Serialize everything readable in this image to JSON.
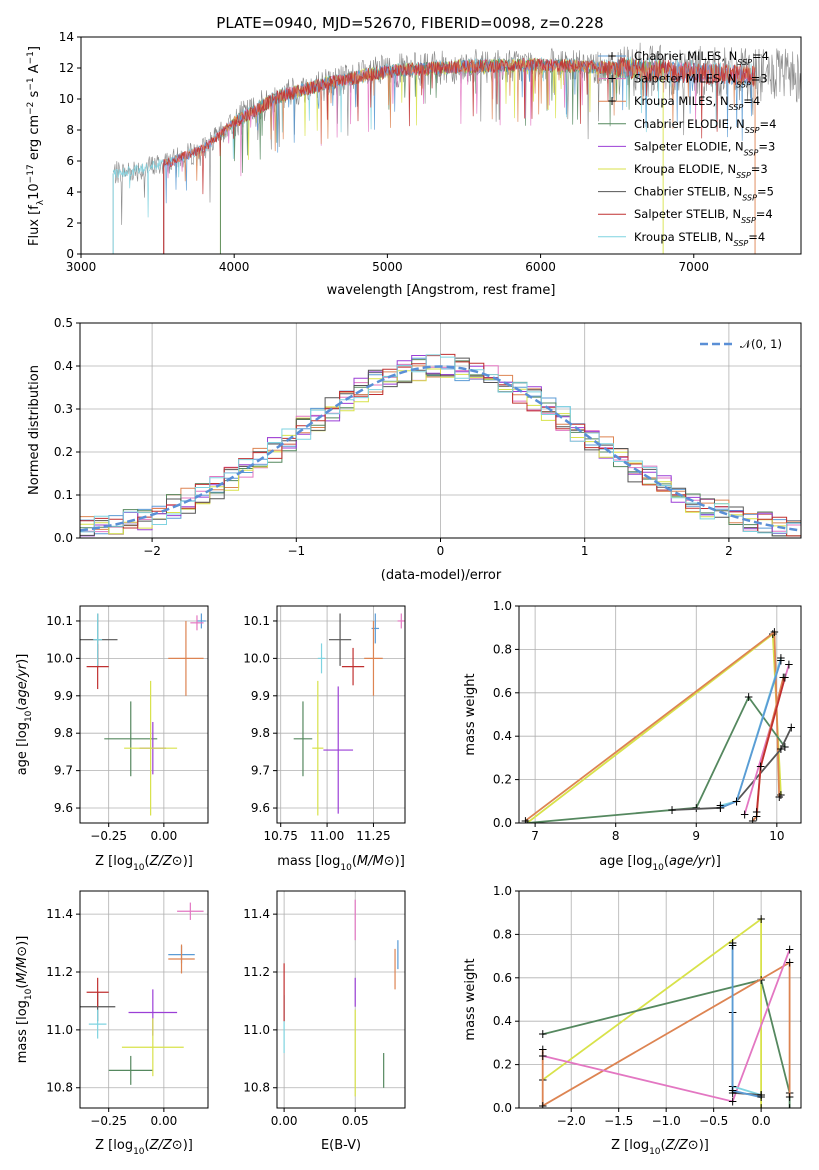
{
  "colors": {
    "Chabrier MILES": "#5b9bd5",
    "Salpeter MILES": "#e377c2",
    "Kroupa MILES": "#dd8452",
    "Chabrier ELODIE": "#55885f",
    "Salpeter ELODIE": "#9b3fd6",
    "Kroupa ELODIE": "#d8e24a",
    "Chabrier STELIB": "#555555",
    "Salpeter STELIB": "#c03030",
    "Kroupa STELIB": "#7fd3e0",
    "normal": "#5a8fd6"
  },
  "chart_data": [
    {
      "id": "spectrum",
      "type": "line",
      "title": "PLATE=0940, MJD=52670, FIBERID=0098, z=0.228",
      "xlabel": "wavelength [Angstrom, rest frame]",
      "ylabel": "Flux [f_λ10^-17 erg cm^-2 s^-1 A^-1]",
      "xlim": [
        3000,
        7700
      ],
      "ylim": [
        0,
        14
      ],
      "xticks": [
        3000,
        4000,
        5000,
        6000,
        7000
      ],
      "yticks": [
        0,
        2,
        4,
        6,
        8,
        10,
        12,
        14
      ],
      "legend_position": "upper-right",
      "legend": [
        {
          "name": "Chabrier MILES",
          "nssp": 4,
          "marker": true
        },
        {
          "name": "Salpeter MILES",
          "nssp": 3,
          "marker": true
        },
        {
          "name": "Kroupa MILES",
          "nssp": 4,
          "marker": true
        },
        {
          "name": "Chabrier ELODIE",
          "nssp": 4
        },
        {
          "name": "Salpeter ELODIE",
          "nssp": 3
        },
        {
          "name": "Kroupa ELODIE",
          "nssp": 3
        },
        {
          "name": "Chabrier STELIB",
          "nssp": 5
        },
        {
          "name": "Salpeter STELIB",
          "nssp": 4
        },
        {
          "name": "Kroupa STELIB",
          "nssp": 4
        }
      ],
      "data_range": {
        "observed_start": 3210,
        "miles_start": 3540,
        "elodie_start": 3910,
        "elodie_end": 6800,
        "stelib_end": 7400
      },
      "continuum": {
        "x": [
          3210,
          3400,
          3600,
          3800,
          4000,
          4300,
          4600,
          5000,
          5500,
          6000,
          6500,
          7000,
          7400
        ],
        "y": [
          5.2,
          5.5,
          6.0,
          6.8,
          8.5,
          10.2,
          11.0,
          11.8,
          12.1,
          12.2,
          12.0,
          11.7,
          11.5
        ]
      }
    },
    {
      "id": "residuals",
      "type": "histogram",
      "xlabel": "(data-model)/error",
      "ylabel": "Normed distribution",
      "xlim": [
        -2.5,
        2.5
      ],
      "ylim": [
        0,
        0.5
      ],
      "xticks": [
        -2,
        -1,
        0,
        1,
        2
      ],
      "yticks": [
        0.0,
        0.1,
        0.2,
        0.3,
        0.4,
        0.5
      ],
      "grid": true,
      "legend_position": "upper-right",
      "normal_label": "𝒩(0, 1)",
      "bin_width": 0.1
    },
    {
      "id": "age-vs-Z",
      "type": "scatter",
      "xlabel": "Z [log10(Z/Z⊙)]",
      "ylabel": "age  [log10(age/yr)]",
      "xlim": [
        -0.38,
        0.2
      ],
      "ylim": [
        9.56,
        10.14
      ],
      "xticks": [
        -0.25,
        0.0
      ],
      "yticks": [
        9.6,
        9.7,
        9.8,
        9.9,
        10.0,
        10.1
      ],
      "grid": true,
      "points": [
        {
          "series": "Chabrier MILES",
          "x": 0.17,
          "y": 10.1,
          "xerr": 0.02,
          "yerr": 0.02
        },
        {
          "series": "Salpeter MILES",
          "x": 0.15,
          "y": 10.095,
          "xerr": 0.03,
          "yerr": 0.02
        },
        {
          "series": "Kroupa MILES",
          "x": 0.1,
          "y": 10.0,
          "xerr": 0.08,
          "yerr": 0.1
        },
        {
          "series": "Chabrier ELODIE",
          "x": -0.15,
          "y": 9.785,
          "xerr": 0.12,
          "yerr": 0.1
        },
        {
          "series": "Salpeter ELODIE",
          "x": -0.05,
          "y": 9.76,
          "xerr": 0.06,
          "yerr": 0.07
        },
        {
          "series": "Kroupa ELODIE",
          "x": -0.06,
          "y": 9.76,
          "xerr": 0.12,
          "yerr": 0.18
        },
        {
          "series": "Chabrier STELIB",
          "x": -0.3,
          "y": 10.05,
          "xerr": 0.09,
          "yerr": 0.07
        },
        {
          "series": "Salpeter STELIB",
          "x": -0.3,
          "y": 9.978,
          "xerr": 0.05,
          "yerr": 0.06
        },
        {
          "series": "Kroupa STELIB",
          "x": -0.3,
          "y": 10.05,
          "xerr": 0.02,
          "yerr": 0.07
        }
      ]
    },
    {
      "id": "age-vs-mass",
      "type": "scatter",
      "xlabel": "mass [log10(M/M⊙)]",
      "xlim": [
        10.73,
        11.42
      ],
      "ylim": [
        9.56,
        10.14
      ],
      "xticks": [
        10.75,
        11.0,
        11.25
      ],
      "yticks": [
        9.6,
        9.7,
        9.8,
        9.9,
        10.0,
        10.1
      ],
      "grid": true,
      "points": [
        {
          "series": "Chabrier MILES",
          "x": 11.26,
          "y": 10.08,
          "xerr": 0.02,
          "yerr": 0.04
        },
        {
          "series": "Salpeter MILES",
          "x": 11.4,
          "y": 10.1,
          "xerr": 0.02,
          "yerr": 0.02
        },
        {
          "series": "Kroupa MILES",
          "x": 11.25,
          "y": 10.0,
          "xerr": 0.05,
          "yerr": 0.1
        },
        {
          "series": "Chabrier ELODIE",
          "x": 10.87,
          "y": 9.785,
          "xerr": 0.05,
          "yerr": 0.1
        },
        {
          "series": "Salpeter ELODIE",
          "x": 11.06,
          "y": 9.755,
          "xerr": 0.08,
          "yerr": 0.17
        },
        {
          "series": "Kroupa ELODIE",
          "x": 10.95,
          "y": 9.76,
          "xerr": 0.03,
          "yerr": 0.18
        },
        {
          "series": "Chabrier STELIB",
          "x": 11.07,
          "y": 10.05,
          "xerr": 0.06,
          "yerr": 0.07
        },
        {
          "series": "Salpeter STELIB",
          "x": 11.14,
          "y": 9.978,
          "xerr": 0.06,
          "yerr": 0.05
        },
        {
          "series": "Kroupa STELIB",
          "x": 10.97,
          "y": 10.0,
          "xerr": 0.02,
          "yerr": 0.04
        }
      ]
    },
    {
      "id": "weight-vs-age",
      "type": "line",
      "xlabel": "age  [log10(age/yr)]",
      "ylabel": "mass weight",
      "xlim": [
        6.8,
        10.3
      ],
      "ylim": [
        0,
        1
      ],
      "xticks": [
        7,
        8,
        9,
        10
      ],
      "yticks": [
        0.0,
        0.2,
        0.4,
        0.6,
        0.8,
        1.0
      ],
      "grid": true,
      "series": [
        {
          "name": "Kroupa ELODIE",
          "x": [
            6.9,
            9.95,
            10.05
          ],
          "y": [
            0.0,
            0.87,
            0.13
          ]
        },
        {
          "name": "Kroupa MILES",
          "x": [
            6.88,
            9.97,
            10.03
          ],
          "y": [
            0.01,
            0.88,
            0.12
          ]
        },
        {
          "name": "Chabrier ELODIE",
          "x": [
            6.9,
            9.0,
            9.65,
            10.1
          ],
          "y": [
            0.0,
            0.07,
            0.58,
            0.35
          ]
        },
        {
          "name": "Chabrier STELIB",
          "x": [
            8.7,
            9.3,
            9.5,
            10.05,
            10.18
          ],
          "y": [
            0.06,
            0.07,
            0.1,
            0.34,
            0.44
          ]
        },
        {
          "name": "Kroupa STELIB",
          "x": [
            9.3,
            9.5,
            10.05
          ],
          "y": [
            0.08,
            0.1,
            0.76
          ]
        },
        {
          "name": "Chabrier MILES",
          "x": [
            9.3,
            9.5,
            10.05
          ],
          "y": [
            0.07,
            0.1,
            0.75
          ]
        },
        {
          "name": "Salpeter MILES",
          "x": [
            9.6,
            10.15
          ],
          "y": [
            0.04,
            0.73
          ]
        },
        {
          "name": "Kroupa MILES",
          "x": [
            9.7,
            9.75,
            9.8,
            10.08
          ],
          "y": [
            0.01,
            0.03,
            0.26,
            0.67
          ]
        },
        {
          "name": "Salpeter STELIB",
          "x": [
            9.75,
            9.8,
            10.1
          ],
          "y": [
            0.05,
            0.26,
            0.67
          ]
        }
      ]
    },
    {
      "id": "mass-vs-Z",
      "type": "scatter",
      "xlabel": "Z [log10(Z/Z⊙)]",
      "ylabel": "mass [log10(M/M⊙)]",
      "xlim": [
        -0.38,
        0.2
      ],
      "ylim": [
        10.73,
        11.48
      ],
      "xticks": [
        -0.25,
        0.0
      ],
      "yticks": [
        10.8,
        11.0,
        11.2,
        11.4
      ],
      "grid": true,
      "points": [
        {
          "series": "Chabrier MILES",
          "x": 0.08,
          "y": 11.26,
          "xerr": 0.06,
          "yerr": 0.03
        },
        {
          "series": "Salpeter MILES",
          "x": 0.12,
          "y": 11.41,
          "xerr": 0.06,
          "yerr": 0.03
        },
        {
          "series": "Kroupa MILES",
          "x": 0.08,
          "y": 11.245,
          "xerr": 0.06,
          "yerr": 0.05
        },
        {
          "series": "Chabrier ELODIE",
          "x": -0.15,
          "y": 10.86,
          "xerr": 0.1,
          "yerr": 0.05
        },
        {
          "series": "Salpeter ELODIE",
          "x": -0.05,
          "y": 11.06,
          "xerr": 0.11,
          "yerr": 0.08
        },
        {
          "series": "Kroupa ELODIE",
          "x": -0.05,
          "y": 10.94,
          "xerr": 0.14,
          "yerr": 0.1
        },
        {
          "series": "Chabrier STELIB",
          "x": -0.3,
          "y": 11.08,
          "xerr": 0.08,
          "yerr": 0.05
        },
        {
          "series": "Salpeter STELIB",
          "x": -0.3,
          "y": 11.13,
          "xerr": 0.05,
          "yerr": 0.05
        },
        {
          "series": "Kroupa STELIB",
          "x": -0.3,
          "y": 11.02,
          "xerr": 0.04,
          "yerr": 0.05
        }
      ]
    },
    {
      "id": "mass-vs-EBV",
      "type": "scatter",
      "xlabel": "E(B-V)",
      "xlim": [
        -0.005,
        0.085
      ],
      "ylim": [
        10.73,
        11.48
      ],
      "xticks": [
        0.0,
        0.05
      ],
      "yticks": [
        10.8,
        11.0,
        11.2,
        11.4
      ],
      "grid": true,
      "points": [
        {
          "series": "Kroupa STELIB",
          "x": 0.0,
          "y": 11.02,
          "yerr": 0.1
        },
        {
          "series": "Salpeter STELIB",
          "x": 0.0,
          "y": 11.13,
          "yerr": 0.1
        },
        {
          "series": "Salpeter MILES",
          "x": 0.05,
          "y": 11.38,
          "yerr": 0.07
        },
        {
          "series": "Salpeter ELODIE",
          "x": 0.05,
          "y": 11.13,
          "yerr": 0.05
        },
        {
          "series": "Kroupa ELODIE",
          "x": 0.05,
          "y": 10.92,
          "yerr": 0.15
        },
        {
          "series": "Chabrier ELODIE",
          "x": 0.07,
          "y": 10.86,
          "yerr": 0.06
        },
        {
          "series": "Kroupa MILES",
          "x": 0.078,
          "y": 11.21,
          "yerr": 0.07
        },
        {
          "series": "Chabrier MILES",
          "x": 0.08,
          "y": 11.26,
          "yerr": 0.05
        }
      ]
    },
    {
      "id": "weight-vs-Z",
      "type": "line",
      "xlabel": "Z [log10(Z/Z⊙)]",
      "ylabel": "mass weight",
      "xlim": [
        -2.55,
        0.42
      ],
      "ylim": [
        0,
        1
      ],
      "xticks": [
        -2.0,
        -1.5,
        -1.0,
        -0.5,
        0.0
      ],
      "yticks": [
        0.0,
        0.2,
        0.4,
        0.6,
        0.8,
        1.0
      ],
      "grid": true,
      "series": [
        {
          "name": "Kroupa ELODIE",
          "x": [
            -2.3,
            0.0,
            0.0
          ],
          "y": [
            0.13,
            0.87,
            0.0
          ]
        },
        {
          "name": "Chabrier ELODIE",
          "x": [
            -2.3,
            0.0,
            0.3,
            0.3
          ],
          "y": [
            0.34,
            0.59,
            0.07,
            0.0
          ]
        },
        {
          "name": "Kroupa MILES",
          "x": [
            -2.3,
            -2.3,
            0.3,
            0.3
          ],
          "y": [
            0.27,
            0.01,
            0.67,
            0.05
          ]
        },
        {
          "name": "Salpeter MILES",
          "x": [
            -2.3,
            -0.3,
            0.3
          ],
          "y": [
            0.24,
            0.03,
            0.73
          ]
        },
        {
          "name": "Kroupa STELIB",
          "x": [
            -0.3,
            -0.3,
            0.0
          ],
          "y": [
            0.76,
            0.1,
            0.06
          ]
        },
        {
          "name": "Chabrier STELIB",
          "x": [
            -0.3,
            -0.3,
            0.0
          ],
          "y": [
            0.44,
            0.07,
            0.06
          ]
        },
        {
          "name": "Chabrier MILES",
          "x": [
            -0.3,
            -0.3,
            0.0
          ],
          "y": [
            0.75,
            0.08,
            0.05
          ]
        }
      ]
    }
  ]
}
